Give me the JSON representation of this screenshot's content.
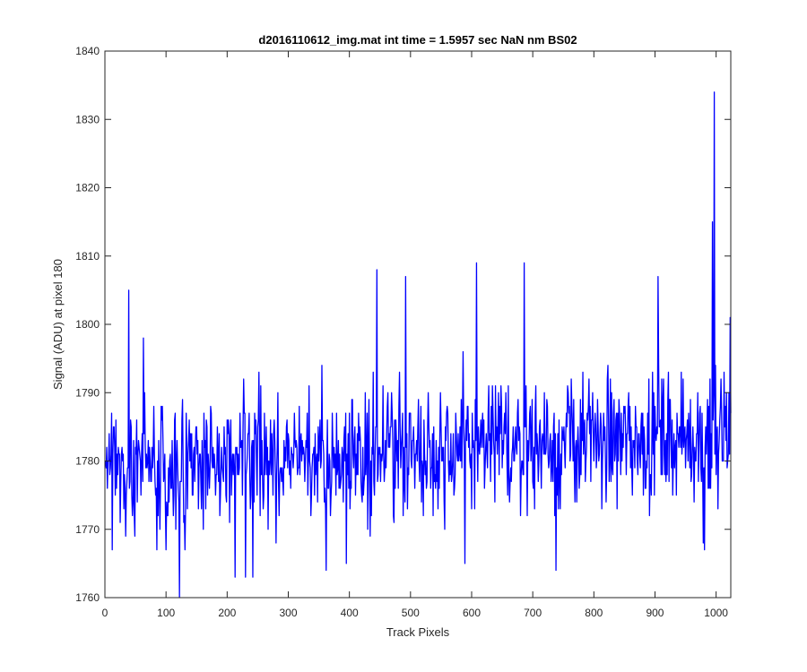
{
  "chart_data": {
    "type": "line",
    "title": "d2016110612_img.mat int time = 1.5957 sec  NaN nm BS02",
    "xlabel": "Track Pixels",
    "ylabel": "Signal (ADU) at pixel 180",
    "xlim": [
      0,
      1024
    ],
    "ylim": [
      1760,
      1840
    ],
    "xticks": [
      0,
      100,
      200,
      300,
      400,
      500,
      600,
      700,
      800,
      900,
      1000
    ],
    "yticks": [
      1760,
      1770,
      1780,
      1790,
      1800,
      1810,
      1820,
      1830,
      1840
    ],
    "grid": false,
    "line_color": "#0000ff",
    "series": [
      {
        "x_start": 1,
        "x_step": 1,
        "mean_trend": [
          [
            0,
            1779
          ],
          [
            200,
            1780
          ],
          [
            400,
            1781
          ],
          [
            600,
            1782
          ],
          [
            800,
            1783
          ],
          [
            1000,
            1784
          ],
          [
            1024,
            1785
          ]
        ],
        "noise_sd": 4.6,
        "seed": 180,
        "notable_points": [
          [
            39,
            1805
          ],
          [
            63,
            1798
          ],
          [
            122,
            1760
          ],
          [
            131,
            1767
          ],
          [
            213,
            1763
          ],
          [
            230,
            1763
          ],
          [
            242,
            1763
          ],
          [
            362,
            1764
          ],
          [
            395,
            1765
          ],
          [
            445,
            1808
          ],
          [
            492,
            1807
          ],
          [
            589,
            1765
          ],
          [
            608,
            1809
          ],
          [
            686,
            1809
          ],
          [
            738,
            1764
          ],
          [
            905,
            1807
          ],
          [
            979,
            1768
          ],
          [
            981,
            1767
          ],
          [
            994,
            1815
          ],
          [
            997,
            1834
          ],
          [
            1003,
            1773
          ],
          [
            1023,
            1801
          ]
        ]
      }
    ]
  }
}
